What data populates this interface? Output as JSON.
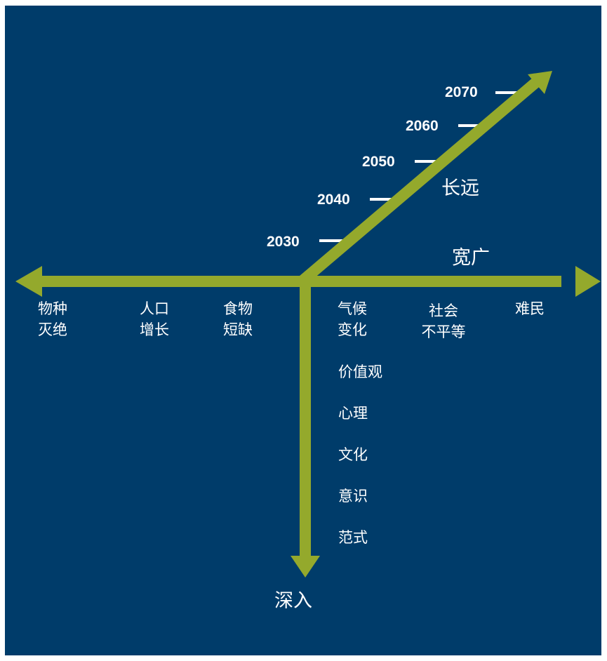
{
  "colors": {
    "background": "#003C6A",
    "arrow": "#94A92C",
    "text": "#FFFFFF"
  },
  "axes": {
    "longterm_label": "长远",
    "breadth_label": "宽广",
    "depth_label": "深入"
  },
  "years": [
    "2030",
    "2040",
    "2050",
    "2060",
    "2070"
  ],
  "left_items": [
    {
      "line1": "物种",
      "line2": "灭绝"
    },
    {
      "line1": "人口",
      "line2": "增长"
    },
    {
      "line1": "食物",
      "line2": "短缺"
    }
  ],
  "right_items": [
    {
      "line1": "气候",
      "line2": "变化"
    },
    {
      "line1": "社会",
      "line2": "不平等"
    },
    {
      "line1": "难民",
      "line2": ""
    }
  ],
  "depth_items": [
    "价值观",
    "心理",
    "文化",
    "意识",
    "范式"
  ]
}
